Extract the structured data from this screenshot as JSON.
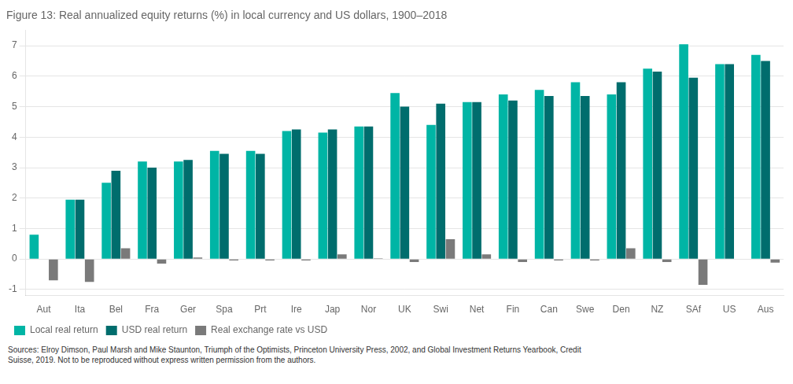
{
  "chart_data": {
    "type": "bar",
    "title": "Figure 13: Real annualized equity returns (%) in local currency and US dollars, 1900–2018",
    "categories": [
      "Aut",
      "Ita",
      "Bel",
      "Fra",
      "Ger",
      "Spa",
      "Prt",
      "Ire",
      "Jap",
      "Nor",
      "UK",
      "Swi",
      "Net",
      "Fin",
      "Can",
      "Swe",
      "Den",
      "NZ",
      "SAf",
      "US",
      "Aus"
    ],
    "series": [
      {
        "name": "Local real return",
        "color": "#00b5a5",
        "values": [
          0.8,
          1.95,
          2.5,
          3.2,
          3.2,
          3.55,
          3.55,
          4.2,
          4.15,
          4.35,
          5.45,
          4.4,
          5.15,
          5.4,
          5.55,
          5.8,
          5.4,
          6.25,
          7.05,
          6.4,
          6.7
        ]
      },
      {
        "name": "USD real return",
        "color": "#006d6d",
        "values": [
          0.0,
          1.95,
          2.9,
          3.0,
          3.25,
          3.45,
          3.45,
          4.25,
          4.25,
          4.35,
          5.0,
          5.1,
          5.15,
          5.2,
          5.35,
          5.35,
          5.8,
          6.15,
          5.95,
          6.4,
          6.5
        ]
      },
      {
        "name": "Real exchange rate vs USD",
        "color": "#7a7a7a",
        "values": [
          -0.7,
          -0.75,
          0.35,
          -0.15,
          0.05,
          -0.05,
          -0.05,
          -0.05,
          0.15,
          0.02,
          -0.1,
          0.65,
          0.15,
          -0.1,
          -0.05,
          -0.05,
          0.35,
          -0.1,
          -0.85,
          0.0,
          -0.12
        ]
      }
    ],
    "ylim": [
      -1.2,
      7.5
    ],
    "yticks": [
      -1,
      0,
      1,
      2,
      3,
      4,
      5,
      6,
      7
    ],
    "grid": true,
    "legend": "bottom left",
    "annotations": [
      "Sources: Elroy Dimson, Paul Marsh and Mike Staunton, Triumph of the Optimists, Princeton University Press, 2002, and Global Investment Returns Yearbook, Credit\nSuisse, 2019. Not to be reproduced without express written permission from the authors."
    ]
  }
}
